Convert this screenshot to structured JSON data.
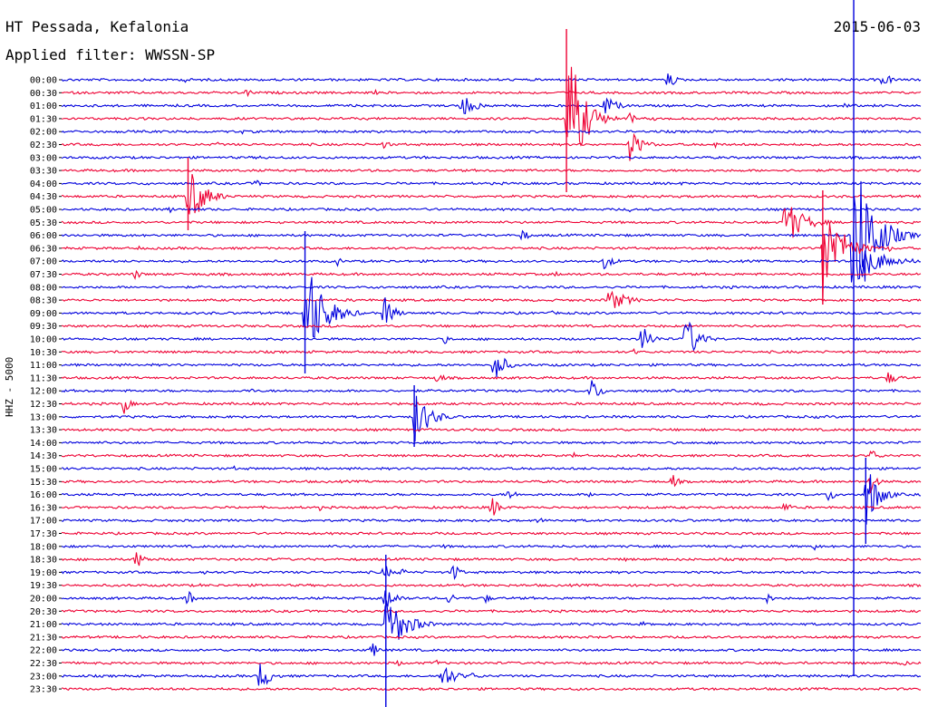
{
  "header": {
    "station": "HT Pessada, Kefalonia",
    "filter": "Applied filter: WWSSN-SP",
    "date": "2015-06-03"
  },
  "chart_data": {
    "type": "line",
    "ylabel": "HHZ - 5000",
    "line_colors": [
      "#0000dd",
      "#ee0033"
    ],
    "traces": [
      {
        "label": "00:00",
        "events": [
          [
            0.145,
            8,
            0.5
          ],
          [
            0.705,
            15,
            1.0
          ],
          [
            0.955,
            9,
            1.5
          ]
        ]
      },
      {
        "label": "00:30",
        "events": [
          [
            0.215,
            6,
            1.0
          ],
          [
            0.365,
            3,
            0.6
          ],
          [
            0.59,
            3,
            0.5
          ]
        ]
      },
      {
        "label": "01:00",
        "events": [
          [
            0.465,
            13,
            2.5
          ],
          [
            0.63,
            14,
            2.0
          ],
          [
            0.91,
            4,
            0.8
          ]
        ]
      },
      {
        "label": "01:30",
        "events": [
          [
            0.587,
            95,
            2.5
          ],
          [
            0.66,
            8,
            1.0
          ],
          [
            0.28,
            4,
            0.5
          ],
          [
            0.69,
            4,
            0.6
          ]
        ]
      },
      {
        "label": "02:00",
        "events": [
          [
            0.21,
            3,
            0.5
          ],
          [
            0.45,
            3,
            0.5
          ]
        ]
      },
      {
        "label": "02:30",
        "events": [
          [
            0.375,
            8,
            0.8
          ],
          [
            0.66,
            20,
            2.0
          ],
          [
            0.18,
            5,
            0.6
          ],
          [
            0.28,
            4,
            0.5
          ],
          [
            0.76,
            5,
            0.6
          ]
        ]
      },
      {
        "label": "03:00",
        "events": [
          [
            0.23,
            4,
            0.5
          ],
          [
            0.42,
            3,
            0.6
          ]
        ]
      },
      {
        "label": "03:30",
        "events": [
          [
            0.085,
            3,
            0.4
          ],
          [
            0.55,
            3,
            0.5
          ]
        ]
      },
      {
        "label": "04:00",
        "events": [
          [
            0.1,
            4,
            0.6
          ],
          [
            0.225,
            5,
            1.0
          ],
          [
            0.72,
            3,
            0.5
          ]
        ]
      },
      {
        "label": "04:30",
        "events": [
          [
            0.147,
            38,
            2.5
          ],
          [
            0.495,
            4,
            0.5
          ],
          [
            0.735,
            5,
            0.6
          ]
        ]
      },
      {
        "label": "05:00",
        "events": [
          [
            0.125,
            6,
            0.6
          ],
          [
            0.54,
            3,
            0.7
          ],
          [
            0.66,
            3,
            0.8
          ]
        ]
      },
      {
        "label": "05:30",
        "events": [
          [
            0.84,
            30,
            3.0
          ],
          [
            0.47,
            3,
            0.5
          ]
        ]
      },
      {
        "label": "06:00",
        "events": [
          [
            0.535,
            10,
            1.0
          ],
          [
            0.92,
            120,
            3.0
          ],
          [
            0.985,
            5,
            0.6
          ]
        ]
      },
      {
        "label": "06:30",
        "events": [
          [
            0.885,
            60,
            3.0
          ],
          [
            0.96,
            6,
            0.8
          ],
          [
            0.09,
            3,
            0.5
          ]
        ]
      },
      {
        "label": "07:00",
        "events": [
          [
            0.32,
            7,
            0.7
          ],
          [
            0.63,
            9,
            1.8
          ],
          [
            0.93,
            20,
            4.0
          ],
          [
            0.99,
            5,
            0.6
          ]
        ]
      },
      {
        "label": "07:30",
        "events": [
          [
            0.085,
            7,
            1.0
          ],
          [
            0.17,
            4,
            0.5
          ],
          [
            0.575,
            4,
            0.5
          ]
        ]
      },
      {
        "label": "08:00",
        "events": [
          [
            0.37,
            5,
            0.7
          ],
          [
            0.775,
            4,
            0.8
          ]
        ]
      },
      {
        "label": "08:30",
        "events": [
          [
            0.635,
            14,
            3.0
          ],
          [
            0.34,
            3,
            0.6
          ]
        ]
      },
      {
        "label": "09:00",
        "events": [
          [
            0.283,
            65,
            3.0
          ],
          [
            0.375,
            22,
            1.5
          ],
          [
            0.57,
            3,
            0.5
          ]
        ]
      },
      {
        "label": "09:30",
        "events": [
          [
            0.35,
            3,
            0.5
          ]
        ]
      },
      {
        "label": "10:00",
        "events": [
          [
            0.445,
            6,
            1.0
          ],
          [
            0.675,
            20,
            1.5
          ],
          [
            0.725,
            30,
            2.0
          ]
        ]
      },
      {
        "label": "10:30",
        "events": [
          [
            0.665,
            5,
            0.6
          ],
          [
            0.985,
            4,
            0.5
          ]
        ]
      },
      {
        "label": "11:00",
        "events": [
          [
            0.503,
            25,
            1.5
          ],
          [
            0.575,
            3,
            0.5
          ]
        ]
      },
      {
        "label": "11:30",
        "events": [
          [
            0.435,
            7,
            1.5
          ],
          [
            0.96,
            8,
            2.0
          ],
          [
            0.225,
            3,
            0.5
          ]
        ]
      },
      {
        "label": "12:00",
        "events": [
          [
            0.615,
            16,
            1.5
          ],
          [
            0.22,
            4,
            0.6
          ]
        ]
      },
      {
        "label": "12:30",
        "events": [
          [
            0.072,
            13,
            1.0
          ],
          [
            0.41,
            5,
            0.5
          ],
          [
            0.81,
            4,
            0.5
          ]
        ]
      },
      {
        "label": "13:00",
        "events": [
          [
            0.41,
            32,
            2.5
          ],
          [
            0.875,
            3,
            1.0
          ]
        ]
      },
      {
        "label": "13:30",
        "events": [
          [
            0.645,
            4,
            0.5
          ]
        ]
      },
      {
        "label": "14:00",
        "events": [
          [
            0.77,
            3,
            0.5
          ]
        ]
      },
      {
        "label": "14:30",
        "events": [
          [
            0.595,
            4,
            0.6
          ],
          [
            0.94,
            8,
            1.5
          ]
        ]
      },
      {
        "label": "15:00",
        "events": [
          [
            0.2,
            3,
            1.0
          ],
          [
            0.7,
            3,
            0.5
          ]
        ]
      },
      {
        "label": "15:30",
        "events": [
          [
            0.71,
            10,
            1.0
          ],
          [
            0.94,
            16,
            1.0
          ]
        ]
      },
      {
        "label": "16:00",
        "events": [
          [
            0.52,
            10,
            1.0
          ],
          [
            0.615,
            5,
            0.6
          ],
          [
            0.89,
            9,
            1.5
          ],
          [
            0.935,
            40,
            2.0
          ]
        ]
      },
      {
        "label": "16:30",
        "events": [
          [
            0.5,
            13,
            1.5
          ],
          [
            0.84,
            9,
            1.0
          ],
          [
            0.3,
            4,
            0.5
          ]
        ]
      },
      {
        "label": "17:00",
        "events": [
          [
            0.555,
            5,
            0.8
          ]
        ]
      },
      {
        "label": "17:30",
        "events": [
          [
            0.435,
            3,
            0.4
          ]
        ]
      },
      {
        "label": "18:00",
        "events": [
          [
            0.445,
            4,
            0.6
          ],
          [
            0.875,
            5,
            1.0
          ]
        ]
      },
      {
        "label": "18:30",
        "events": [
          [
            0.085,
            13,
            1.5
          ],
          [
            0.655,
            3,
            0.5
          ]
        ]
      },
      {
        "label": "19:00",
        "events": [
          [
            0.375,
            11,
            1.0
          ],
          [
            0.395,
            7,
            0.8
          ],
          [
            0.455,
            14,
            1.0
          ],
          [
            0.165,
            5,
            0.6
          ],
          [
            0.745,
            3,
            0.5
          ]
        ]
      },
      {
        "label": "19:30",
        "events": [
          [
            0.16,
            3,
            0.4
          ],
          [
            0.67,
            3,
            0.4
          ]
        ]
      },
      {
        "label": "20:00",
        "events": [
          [
            0.146,
            12,
            1.0
          ],
          [
            0.375,
            14,
            2.0
          ],
          [
            0.45,
            9,
            1.0
          ],
          [
            0.49,
            9,
            1.0
          ],
          [
            0.82,
            7,
            1.0
          ]
        ]
      },
      {
        "label": "20:30",
        "events": [
          [
            0.425,
            3,
            0.5
          ],
          [
            0.525,
            3,
            0.5
          ]
        ]
      },
      {
        "label": "21:00",
        "events": [
          [
            0.377,
            40,
            3.0
          ],
          [
            0.675,
            4,
            0.5
          ],
          [
            0.96,
            3,
            0.5
          ]
        ]
      },
      {
        "label": "21:30",
        "events": [
          [
            0.09,
            3,
            0.4
          ]
        ]
      },
      {
        "label": "22:00",
        "events": [
          [
            0.36,
            12,
            1.0
          ]
        ]
      },
      {
        "label": "22:30",
        "events": [
          [
            0.39,
            5,
            0.8
          ],
          [
            0.435,
            5,
            0.8
          ],
          [
            0.975,
            5,
            1.5
          ]
        ]
      },
      {
        "label": "23:00",
        "events": [
          [
            0.23,
            22,
            1.5
          ],
          [
            0.44,
            20,
            2.0
          ],
          [
            0.475,
            4,
            2.5
          ]
        ]
      },
      {
        "label": "23:30",
        "events": [
          [
            0.6,
            3,
            0.5
          ]
        ]
      }
    ],
    "spikes": [
      {
        "x": 0.587,
        "from": 32,
        "to": 212,
        "color": "#ee0033"
      },
      {
        "x": 0.147,
        "from": 174,
        "to": 254,
        "color": "#ee0033"
      },
      {
        "x": 0.283,
        "from": 255,
        "to": 412,
        "color": "#0000dd"
      },
      {
        "x": 0.885,
        "from": 210,
        "to": 336,
        "color": "#ee0033"
      },
      {
        "x": 0.921,
        "from": 0,
        "to": 746,
        "color": "#0000dd"
      },
      {
        "x": 0.377,
        "from": 612,
        "to": 780,
        "color": "#0000dd"
      },
      {
        "x": 0.41,
        "from": 425,
        "to": 493,
        "color": "#0000dd"
      },
      {
        "x": 0.935,
        "from": 505,
        "to": 600,
        "color": "#0000dd"
      }
    ]
  }
}
